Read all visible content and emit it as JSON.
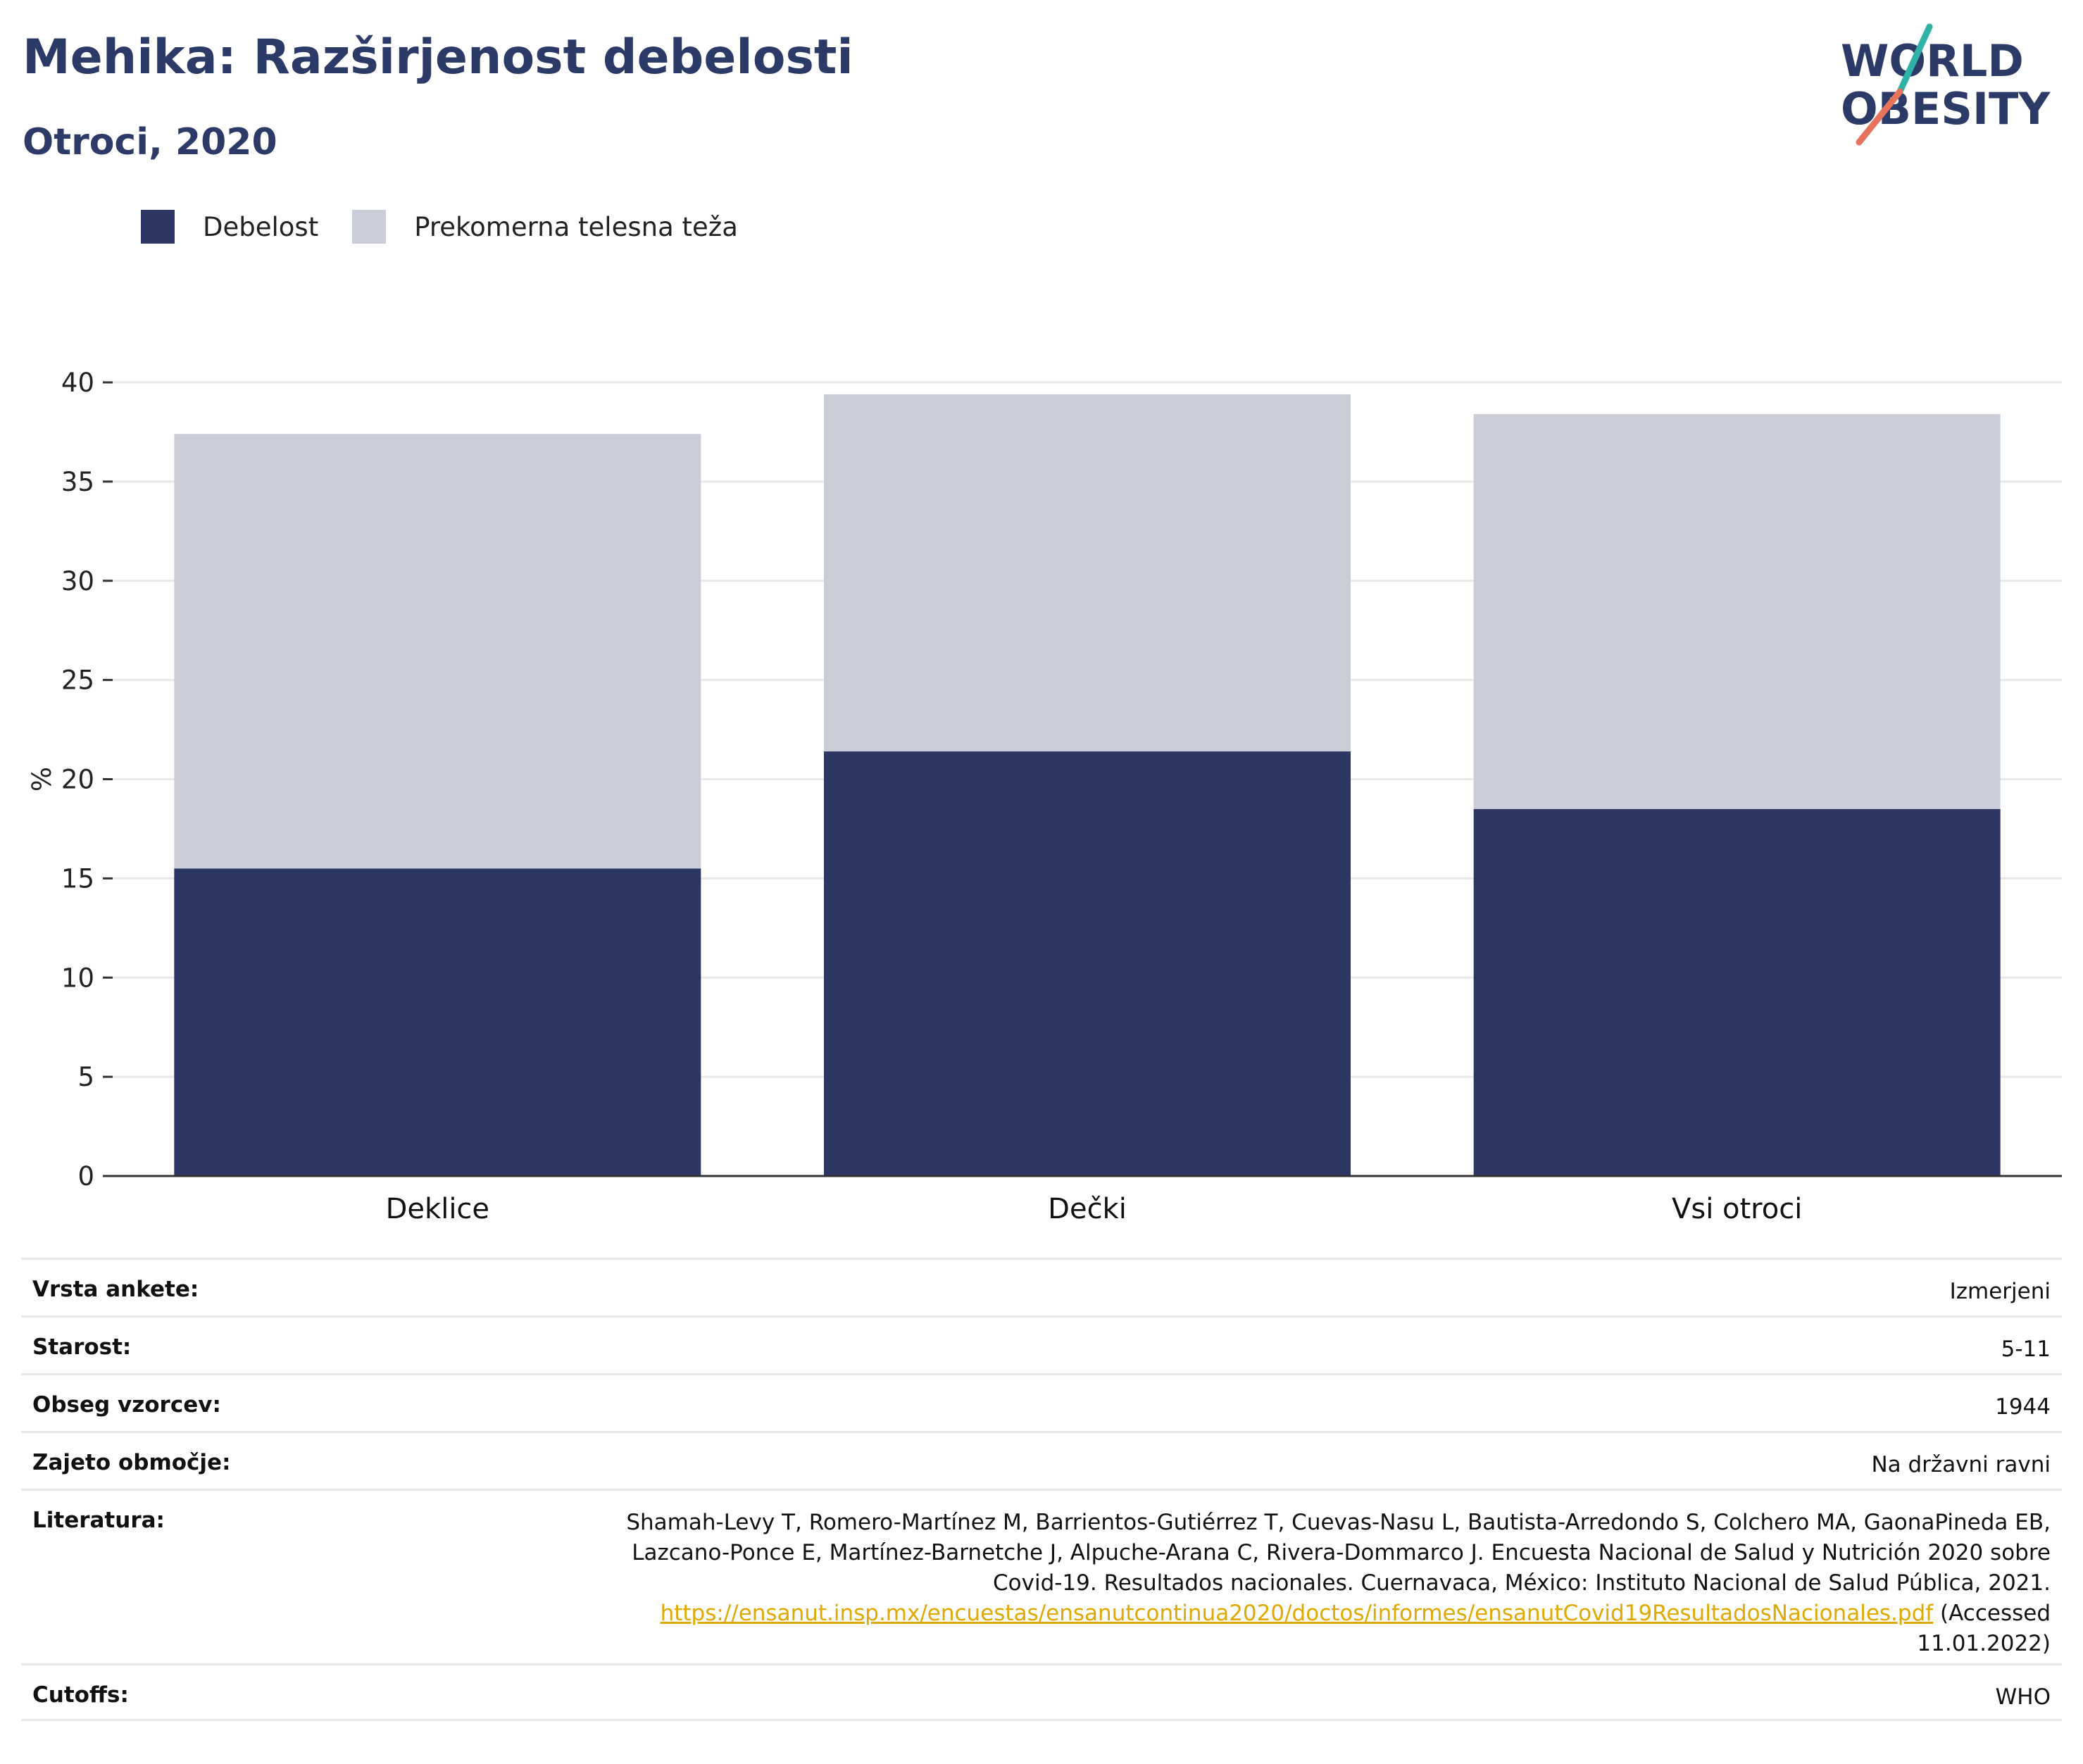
{
  "header": {
    "title": "Mehika: Razširjenost debelosti",
    "subtitle": "Otroci, 2020"
  },
  "logo": {
    "line1": "WORLD",
    "line2": "OBESITY"
  },
  "legend": [
    {
      "label": "Debelost",
      "color": "#2b3663"
    },
    {
      "label": "Prekomerna telesna teža",
      "color": "#cacdd8"
    }
  ],
  "chart_data": {
    "type": "bar",
    "stacked": true,
    "categories": [
      "Deklice",
      "Dečki",
      "Vsi otroci"
    ],
    "series": [
      {
        "name": "Debelost",
        "values": [
          15.5,
          21.4,
          18.5
        ],
        "color": "#2b3663"
      },
      {
        "name": "Prekomerna telesna teža",
        "values": [
          21.9,
          18.0,
          19.9
        ],
        "color": "#cacdd8"
      }
    ],
    "ylabel": "%",
    "xlabel": "",
    "ylim": [
      0,
      40
    ],
    "yticks": [
      0,
      5,
      10,
      15,
      20,
      25,
      30,
      35,
      40
    ],
    "grid": true,
    "legend_position": "top-left"
  },
  "meta": {
    "survey_type": {
      "label": "Vrsta ankete:",
      "value": "Izmerjeni"
    },
    "age": {
      "label": "Starost:",
      "value": "5-11"
    },
    "sample": {
      "label": "Obseg vzorcev:",
      "value": "1944"
    },
    "coverage": {
      "label": "Zajeto območje:",
      "value": "Na državni ravni"
    },
    "reference": {
      "label": "Literatura:",
      "line1": "Shamah-Levy T, Romero-Martínez M, Barrientos-Gutiérrez T, Cuevas-Nasu L, Bautista-Arredondo S, Colchero MA, GaonaPineda EB,",
      "line2": "Lazcano-Ponce E, Martínez-Barnetche J, Alpuche-Arana C, Rivera-Dommarco J. Encuesta Nacional de Salud y Nutrición 2020 sobre",
      "line3": "Covid-19. Resultados nacionales. Cuernavaca, México: Instituto Nacional de Salud Pública, 2021.",
      "link": "https://ensanut.insp.mx/encuestas/ensanutcontinua2020/doctos/informes/ensanutCovid19ResultadosNacionales.pdf",
      "accessed": " (Accessed",
      "date": "11.01.2022)"
    },
    "cutoffs": {
      "label": "Cutoffs:",
      "value": "WHO"
    }
  }
}
